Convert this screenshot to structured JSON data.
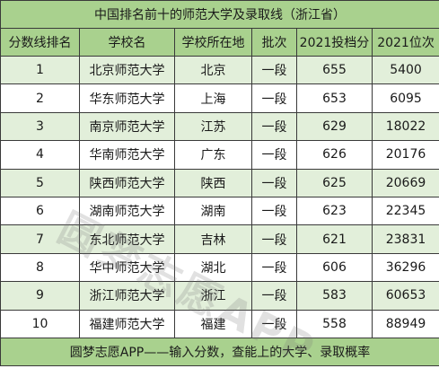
{
  "title": "中国排名前十的师范大学及录取线（浙江省）",
  "headers": [
    "分数线排名",
    "学校名",
    "学校所在地",
    "批次",
    "2021投档分",
    "2021位次"
  ],
  "rows": [
    [
      "1",
      "北京师范大学",
      "北京",
      "一段",
      "655",
      "5400"
    ],
    [
      "2",
      "华东师范大学",
      "上海",
      "一段",
      "653",
      "6095"
    ],
    [
      "3",
      "南京师范大学",
      "江苏",
      "一段",
      "629",
      "18022"
    ],
    [
      "4",
      "华南师范大学",
      "广东",
      "一段",
      "626",
      "20176"
    ],
    [
      "5",
      "陕西师范大学",
      "陕西",
      "一段",
      "625",
      "20669"
    ],
    [
      "6",
      "湖南师范大学",
      "湖南",
      "一段",
      "623",
      "22345"
    ],
    [
      "7",
      "东北师范大学",
      "吉林",
      "一段",
      "621",
      "23831"
    ],
    [
      "8",
      "华中师范大学",
      "湖北",
      "一段",
      "606",
      "36296"
    ],
    [
      "9",
      "浙江师范大学",
      "浙江",
      "一段",
      "583",
      "60653"
    ],
    [
      "10",
      "福建师范大学",
      "福建",
      "一段",
      "558",
      "88949"
    ]
  ],
  "footer": "圆梦志愿APP——输入分数，查能上的大学、录取概率",
  "watermark": "圆梦志愿APP",
  "colors": {
    "header_green": "#a9d18e",
    "stripe_green": "#e2efda"
  }
}
